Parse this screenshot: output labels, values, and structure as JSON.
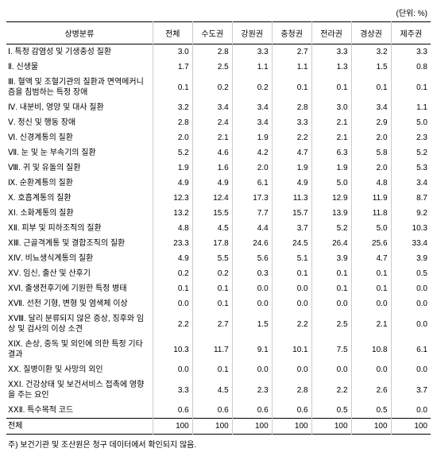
{
  "unit_label": "(단위: %)",
  "columns": [
    "상병분류",
    "전체",
    "수도권",
    "강원권",
    "충청권",
    "전라권",
    "경상권",
    "제주권"
  ],
  "rows": [
    {
      "label": "Ⅰ. 특정 감염성 및 기생충성 질환",
      "vals": [
        "3.0",
        "2.8",
        "3.3",
        "2.7",
        "3.3",
        "3.2",
        "3.3"
      ]
    },
    {
      "label": "Ⅱ. 신생물",
      "vals": [
        "1.7",
        "2.5",
        "1.1",
        "1.1",
        "1.3",
        "1.5",
        "0.8"
      ]
    },
    {
      "label": "Ⅲ. 혈액 및 조혈기관의 질환과 면역메커니즘을 침범하는 특정 장애",
      "vals": [
        "0.1",
        "0.2",
        "0.2",
        "0.1",
        "0.1",
        "0.1",
        "0.1"
      ]
    },
    {
      "label": "Ⅳ. 내분비, 영양 및 대사 질환",
      "vals": [
        "3.2",
        "3.4",
        "3.4",
        "2.8",
        "3.0",
        "3.4",
        "1.1"
      ]
    },
    {
      "label": "Ⅴ. 정신 및 행동 장애",
      "vals": [
        "2.8",
        "2.4",
        "3.4",
        "3.3",
        "2.1",
        "2.9",
        "5.0"
      ]
    },
    {
      "label": "Ⅵ. 신경계통의 질환",
      "vals": [
        "2.0",
        "2.1",
        "1.9",
        "2.2",
        "2.1",
        "2.0",
        "2.3"
      ]
    },
    {
      "label": "Ⅶ. 눈 및 눈 부속기의 질환",
      "vals": [
        "5.2",
        "4.6",
        "4.2",
        "4.7",
        "6.3",
        "5.8",
        "5.2"
      ]
    },
    {
      "label": "Ⅷ. 귀 및 유돌의 질환",
      "vals": [
        "1.9",
        "1.6",
        "2.0",
        "1.9",
        "1.9",
        "2.0",
        "5.3"
      ]
    },
    {
      "label": "Ⅸ. 순환계통의 질환",
      "vals": [
        "4.9",
        "4.9",
        "6.1",
        "4.9",
        "5.0",
        "4.8",
        "3.4"
      ]
    },
    {
      "label": "Ⅹ. 호흡계통의 질환",
      "vals": [
        "12.3",
        "12.4",
        "17.3",
        "11.3",
        "12.9",
        "11.9",
        "8.7"
      ]
    },
    {
      "label": "ⅩⅠ. 소화계통의 질환",
      "vals": [
        "13.2",
        "15.5",
        "7.7",
        "15.7",
        "13.9",
        "11.8",
        "9.2"
      ]
    },
    {
      "label": "ⅩⅡ. 피부 및 피하조직의 질환",
      "vals": [
        "4.8",
        "4.5",
        "4.4",
        "3.7",
        "5.2",
        "5.0",
        "10.3"
      ]
    },
    {
      "label": "ⅩⅢ. 근골격계통 및 결합조직의 질환",
      "vals": [
        "23.3",
        "17.8",
        "24.6",
        "24.5",
        "26.4",
        "25.6",
        "33.4"
      ]
    },
    {
      "label": "ⅩⅣ. 비뇨생식계통의 질환",
      "vals": [
        "4.9",
        "5.5",
        "5.6",
        "5.1",
        "3.9",
        "4.7",
        "3.9"
      ]
    },
    {
      "label": "ⅩⅤ. 임신, 출산 및 산후기",
      "vals": [
        "0.2",
        "0.2",
        "0.3",
        "0.1",
        "0.1",
        "0.1",
        "0.5"
      ]
    },
    {
      "label": "ⅩⅥ. 출생전후기에 기원한 특정 병태",
      "vals": [
        "0.1",
        "0.1",
        "0.0",
        "0.0",
        "0.1",
        "0.1",
        "0.0"
      ]
    },
    {
      "label": "ⅩⅦ. 선천 기형, 변형 및 염색체 이상",
      "vals": [
        "0.0",
        "0.1",
        "0.0",
        "0.0",
        "0.0",
        "0.0",
        "0.0"
      ]
    },
    {
      "label": "ⅩⅧ. 달리 분류되지 않은 증상, 징후와 임상 및 검사의 이상 소견",
      "vals": [
        "2.2",
        "2.7",
        "1.5",
        "2.2",
        "2.5",
        "2.1",
        "0.0"
      ]
    },
    {
      "label": "ⅩⅨ. 손상, 중독 및 외인에 의한 특정 기타 결과",
      "vals": [
        "10.3",
        "11.7",
        "9.1",
        "10.1",
        "7.5",
        "10.8",
        "6.1"
      ]
    },
    {
      "label": "ⅩⅩ. 질병이환 및 사망의 외인",
      "vals": [
        "0.0",
        "0.1",
        "0.0",
        "0.0",
        "0.0",
        "0.0",
        "0.0"
      ]
    },
    {
      "label": "ⅩⅩⅠ. 건강상태 및 보건서비스 접촉에 영향을 주는 요인",
      "vals": [
        "3.3",
        "4.5",
        "2.3",
        "2.8",
        "2.2",
        "2.6",
        "3.7"
      ]
    },
    {
      "label": "ⅩⅩⅡ. 특수목적 코드",
      "vals": [
        "0.6",
        "0.6",
        "0.6",
        "0.6",
        "0.5",
        "0.5",
        "0.0"
      ]
    }
  ],
  "total_row": {
    "label": "전체",
    "vals": [
      "100",
      "100",
      "100",
      "100",
      "100",
      "100",
      "100"
    ]
  },
  "footnote": "주) 보건기관 및 조산원은 청구 데이터에서 확인되지 않음."
}
